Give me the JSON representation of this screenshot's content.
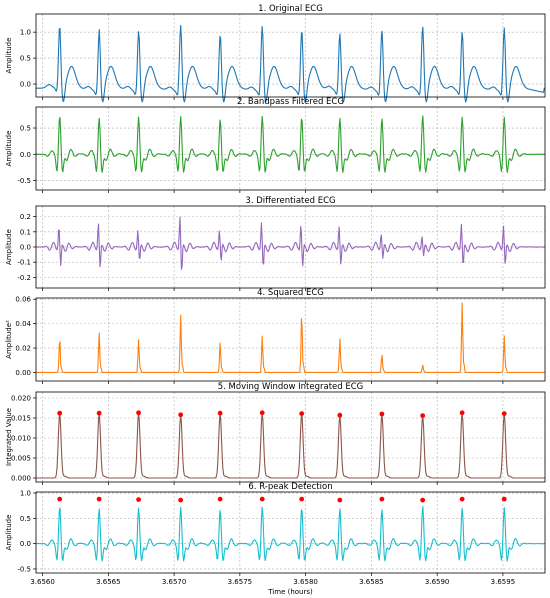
{
  "chart_data": [
    {
      "type": "line",
      "title": "1. Original ECG",
      "ylabel": "Amplitude",
      "ylim": [
        -0.25,
        1.35
      ],
      "yticks": [
        "0.0",
        "0.5",
        "1.0"
      ],
      "ytick_values": [
        0.0,
        0.5,
        1.0
      ],
      "color": "#1f77b4",
      "grid": true,
      "series": [
        {
          "kind": "ecg",
          "r_peak_amplitudes": [
            1.22,
            1.15,
            1.18,
            1.22,
            1.1,
            1.2,
            1.18,
            1.14,
            1.13,
            1.2,
            1.16,
            1.17
          ]
        }
      ]
    },
    {
      "type": "line",
      "title": "2. Bandpass Filtered ECG",
      "ylabel": "Amplitude",
      "ylim": [
        -0.68,
        0.9
      ],
      "yticks": [
        "-0.5",
        "0.0",
        "0.5"
      ],
      "ytick_values": [
        -0.5,
        0.0,
        0.5
      ],
      "color": "#2ca02c",
      "grid": true,
      "series": [
        {
          "kind": "bandpass",
          "r_peak_amplitudes": [
            0.75,
            0.7,
            0.72,
            0.73,
            0.68,
            0.74,
            0.72,
            0.7,
            0.69,
            0.75,
            0.72,
            0.72
          ]
        }
      ]
    },
    {
      "type": "line",
      "title": "3. Differentiated ECG",
      "ylabel": "Amplitude",
      "ylim": [
        -0.27,
        0.27
      ],
      "yticks": [
        "-0.2",
        "-0.1",
        "0.0",
        "0.1",
        "0.2"
      ],
      "ytick_values": [
        -0.2,
        -0.1,
        0.0,
        0.1,
        0.2
      ],
      "color": "#9467bd",
      "grid": true,
      "series": [
        {
          "kind": "diff",
          "r_peak_amplitudes": [
            0.15,
            0.17,
            0.12,
            0.21,
            0.12,
            0.17,
            0.16,
            0.15,
            0.1,
            0.08,
            0.16,
            0.15
          ]
        }
      ]
    },
    {
      "type": "line",
      "title": "4. Squared ECG",
      "ylabel": "Amplitude²",
      "ylim": [
        -0.007,
        0.061
      ],
      "yticks": [
        "0.00",
        "0.02",
        "0.04",
        "0.06"
      ],
      "ytick_values": [
        0.0,
        0.02,
        0.04,
        0.06
      ],
      "color": "#ff7f0e",
      "grid": true,
      "series": [
        {
          "kind": "squared",
          "peak_values": [
            0.029,
            0.033,
            0.027,
            0.047,
            0.025,
            0.03,
            0.049,
            0.028,
            0.015,
            0.006,
            0.057,
            0.03
          ]
        }
      ]
    },
    {
      "type": "line",
      "title": "5. Moving Window Integrated ECG",
      "ylabel": "Integrated Value",
      "ylim": [
        -0.001,
        0.0215
      ],
      "yticks": [
        "0.000",
        "0.005",
        "0.010",
        "0.015",
        "0.020"
      ],
      "ytick_values": [
        0.0,
        0.005,
        0.01,
        0.015,
        0.02
      ],
      "color": "#8c564b",
      "marker_color": "#ff0000",
      "grid": true,
      "series": [
        {
          "kind": "mwi",
          "peak_values": [
            0.0162,
            0.0162,
            0.0163,
            0.0158,
            0.0162,
            0.0163,
            0.0161,
            0.0157,
            0.016,
            0.0156,
            0.0163,
            0.0161
          ]
        }
      ]
    },
    {
      "type": "line",
      "title": "6. R-peak Detection",
      "ylabel": "Amplitude",
      "xlabel": "Time (hours)",
      "ylim": [
        -0.58,
        1.02
      ],
      "yticks": [
        "-0.5",
        "0.0",
        "0.5",
        "1.0"
      ],
      "ytick_values": [
        -0.5,
        0.0,
        0.5,
        1.0
      ],
      "color": "#17becf",
      "marker_color": "#ff0000",
      "grid": true,
      "series": [
        {
          "kind": "bandpass",
          "r_peak_amplitudes": [
            0.75,
            0.7,
            0.72,
            0.73,
            0.68,
            0.74,
            0.72,
            0.7,
            0.69,
            0.75,
            0.72,
            0.72
          ],
          "detected_marker_values": [
            0.88,
            0.88,
            0.87,
            0.86,
            0.88,
            0.88,
            0.88,
            0.86,
            0.88,
            0.86,
            0.88,
            0.88
          ]
        }
      ]
    }
  ],
  "shared_x": {
    "xlim": [
      3.65595,
      3.65982
    ],
    "xticks": [
      "3.6560",
      "3.6565",
      "3.6570",
      "3.6575",
      "3.6580",
      "3.6585",
      "3.6590",
      "3.6595"
    ],
    "xtick_values": [
      3.656,
      3.6565,
      3.657,
      3.6575,
      3.658,
      3.6585,
      3.659,
      3.6595
    ],
    "r_peak_times": [
      3.65613,
      3.65643,
      3.65673,
      3.65705,
      3.65735,
      3.65767,
      3.65797,
      3.65826,
      3.65858,
      3.65889,
      3.65919,
      3.65951
    ]
  }
}
